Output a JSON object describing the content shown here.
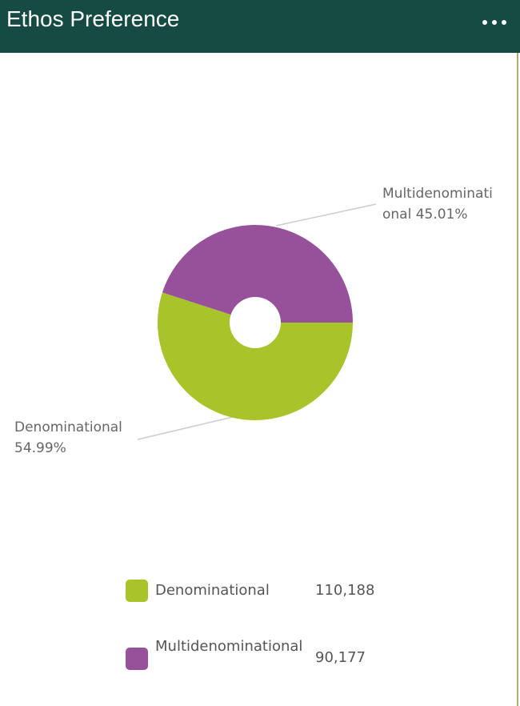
{
  "chart_data": {
    "type": "donut",
    "title": "Ethos Preference",
    "categories": [
      "Denominational",
      "Multidenominational"
    ],
    "values": [
      110188,
      90177
    ],
    "value_labels": [
      "110,188",
      "90,177"
    ],
    "percent_labels": [
      "54.99%",
      "45.01%"
    ],
    "colors": [
      "#a8c42a",
      "#97519b"
    ]
  }
}
